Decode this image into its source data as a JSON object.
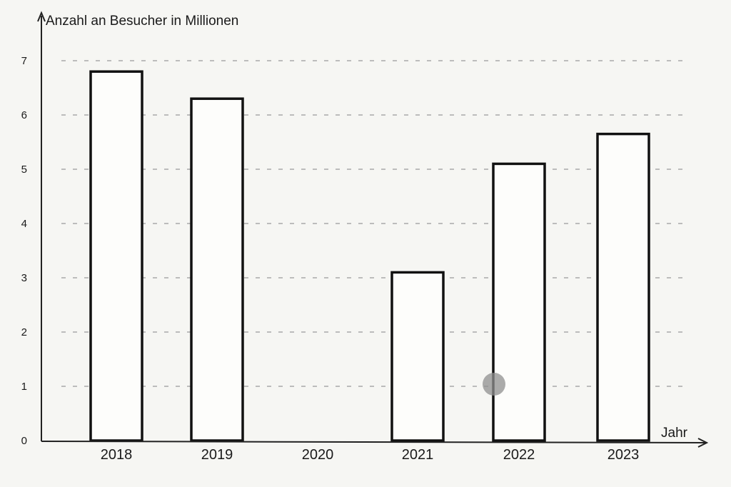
{
  "chart_data": {
    "type": "bar",
    "title": "",
    "ylabel": "Anzahl an Besucher in Millionen",
    "xlabel": "Jahr",
    "categories": [
      "2018",
      "2019",
      "2020",
      "2021",
      "2022",
      "2023"
    ],
    "values": [
      6.8,
      6.3,
      0,
      3.1,
      5.1,
      5.65
    ],
    "ylim": [
      0,
      7
    ],
    "yticks": [
      "0",
      "1",
      "2",
      "3",
      "4",
      "5",
      "6",
      "7"
    ],
    "grid": true,
    "legend": "none",
    "colors": {
      "bar_fill": "#fdfdfb",
      "bar_stroke": "#111111",
      "grid": "#9a9a9a"
    }
  }
}
